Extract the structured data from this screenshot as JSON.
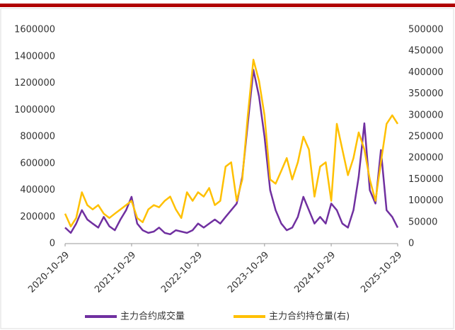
{
  "chart_data": {
    "type": "line",
    "x": [
      "2020-10-29",
      "2020-11-29",
      "2020-12-29",
      "2021-01-29",
      "2021-02-28",
      "2021-03-29",
      "2021-04-29",
      "2021-05-29",
      "2021-06-29",
      "2021-07-29",
      "2021-08-29",
      "2021-09-29",
      "2021-10-29",
      "2021-11-29",
      "2021-12-29",
      "2022-01-29",
      "2022-02-28",
      "2022-03-29",
      "2022-04-29",
      "2022-05-29",
      "2022-06-29",
      "2022-07-29",
      "2022-08-29",
      "2022-09-29",
      "2022-10-29",
      "2022-11-29",
      "2022-12-29",
      "2023-01-29",
      "2023-02-28",
      "2023-03-29",
      "2023-04-29",
      "2023-05-29",
      "2023-06-29",
      "2023-07-29",
      "2023-08-29",
      "2023-09-29",
      "2023-10-29",
      "2023-11-29",
      "2023-12-29",
      "2024-01-29",
      "2024-02-28",
      "2024-03-29",
      "2024-04-29",
      "2024-05-29",
      "2024-06-29",
      "2024-07-29",
      "2024-08-29",
      "2024-09-29",
      "2024-10-29",
      "2024-11-29",
      "2024-12-29",
      "2025-01-29",
      "2025-02-28",
      "2025-03-29",
      "2025-04-29",
      "2025-05-29",
      "2025-06-29",
      "2025-07-29",
      "2025-08-29",
      "2025-09-29",
      "2025-10-29"
    ],
    "series": [
      {
        "name": "主力合约成交量",
        "color": "#7030a0",
        "values": [
          120000,
          80000,
          150000,
          250000,
          180000,
          150000,
          120000,
          200000,
          130000,
          100000,
          180000,
          250000,
          350000,
          150000,
          100000,
          80000,
          90000,
          120000,
          80000,
          70000,
          100000,
          90000,
          80000,
          100000,
          150000,
          120000,
          150000,
          180000,
          150000,
          200000,
          250000,
          300000,
          500000,
          900000,
          1300000,
          1100000,
          800000,
          400000,
          250000,
          150000,
          100000,
          120000,
          200000,
          350000,
          250000,
          150000,
          200000,
          150000,
          300000,
          250000,
          150000,
          120000,
          250000,
          500000,
          900000,
          400000,
          300000,
          700000,
          250000,
          200000,
          120000
        ]
      },
      {
        "name": "主力合约持仓量(右)",
        "color": "#ffc000",
        "axis": "y2",
        "values": [
          70000,
          40000,
          60000,
          120000,
          90000,
          80000,
          90000,
          70000,
          60000,
          70000,
          80000,
          90000,
          100000,
          60000,
          50000,
          80000,
          90000,
          85000,
          100000,
          110000,
          80000,
          60000,
          120000,
          100000,
          120000,
          110000,
          130000,
          90000,
          100000,
          180000,
          190000,
          100000,
          150000,
          300000,
          430000,
          380000,
          300000,
          150000,
          140000,
          170000,
          200000,
          150000,
          190000,
          250000,
          220000,
          110000,
          180000,
          190000,
          100000,
          280000,
          220000,
          160000,
          200000,
          260000,
          220000,
          150000,
          100000,
          190000,
          280000,
          300000,
          280000
        ]
      }
    ],
    "xlim": [
      "2020-10-29",
      "2025-10-29"
    ],
    "xticks": [
      "2020-10-29",
      "2021-10-29",
      "2022-10-29",
      "2023-10-29",
      "2024-10-29",
      "2025-10-29"
    ],
    "ylim": [
      0,
      1600000
    ],
    "yticks": [
      0,
      200000,
      400000,
      600000,
      800000,
      1000000,
      1200000,
      1400000,
      1600000
    ],
    "y2lim": [
      0,
      500000
    ],
    "y2ticks": [
      0,
      50000,
      100000,
      150000,
      200000,
      250000,
      300000,
      350000,
      400000,
      450000,
      500000
    ]
  }
}
